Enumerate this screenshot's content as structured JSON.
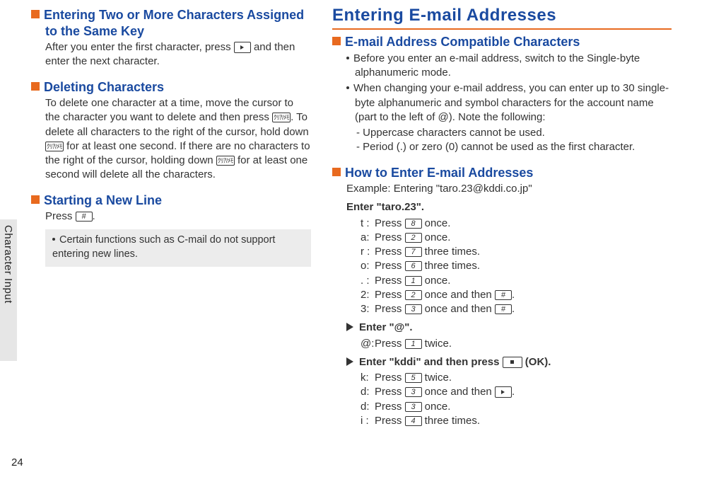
{
  "sideTab": "Character Input",
  "pageNumber": "24",
  "left": {
    "h1": "Entering Two or More Characters Assigned to the Same Key",
    "p1a": "After you enter the first character, press ",
    "p1b": " and then enter the next character.",
    "h2": "Deleting Characters",
    "p2a": "To delete one character at a time, move the cursor to the character you want to delete and then press ",
    "p2b": ". To delete all characters to the right of the cursor, hold down ",
    "p2c": " for at least one second. If there are no characters to the right of the cursor, holding down ",
    "p2d": " for at least one second will delete all the characters.",
    "h3": "Starting a New Line",
    "p3a": "Press ",
    "p3b": ".",
    "note": "Certain functions such as C-mail do not support entering new lines.",
    "key_hash": "#",
    "key_clear": "ｸﾘｱ/ﾒﾓ"
  },
  "right": {
    "title": "Entering E-mail Addresses",
    "h1": "E-mail Address Compatible Characters",
    "b1": "Before you enter an e-mail address, switch to the Single-byte alphanumeric mode.",
    "b2": "When changing your e-mail address, you can enter up to 30 single-byte alphanumeric and symbol characters for the account name (part to the left of @). Note the following:",
    "d1": "Uppercase characters cannot be used.",
    "d2": "Period (.) or zero (0) cannot be used as the first character.",
    "h2": "How to Enter E-mail Addresses",
    "ex": "Example: Entering \"taro.23@kddi.co.jp\"",
    "s1": "Enter \"taro.23\".",
    "lines1": {
      "t": {
        "lbl": "t :",
        "a": "Press ",
        "k": "8",
        "b": " once."
      },
      "a": {
        "lbl": "a:",
        "a": "Press ",
        "k": "2",
        "b": " once."
      },
      "r": {
        "lbl": "r :",
        "a": "Press ",
        "k": "7",
        "b": " three times."
      },
      "o": {
        "lbl": "o:",
        "a": "Press ",
        "k": "6",
        "b": " three times."
      },
      "dot": {
        "lbl": ". :",
        "a": "Press ",
        "k": "1",
        "b": " once."
      },
      "n2": {
        "lbl": "2:",
        "a": "Press ",
        "k": "2",
        "b": " once and then ",
        "k2": "#",
        "c": "."
      },
      "n3": {
        "lbl": "3:",
        "a": "Press ",
        "k": "3",
        "b": " once and then ",
        "k2": "#",
        "c": "."
      }
    },
    "s2": "Enter \"@\".",
    "lines2": {
      "at": {
        "lbl": "@:",
        "a": "Press ",
        "k": "1",
        "b": " twice."
      }
    },
    "s3a": "Enter \"kddi\" and then press ",
    "s3b": " (OK).",
    "lines3": {
      "k": {
        "lbl": "k:",
        "a": "Press ",
        "k": "5",
        "b": " twice."
      },
      "d1": {
        "lbl": "d:",
        "a": "Press ",
        "k": "3",
        "b": " once and then ",
        "arrow": true,
        "c": "."
      },
      "d2": {
        "lbl": "d:",
        "a": "Press ",
        "k": "3",
        "b": " once."
      },
      "i": {
        "lbl": "i :",
        "a": "Press ",
        "k": "4",
        "b": " three times."
      }
    }
  }
}
